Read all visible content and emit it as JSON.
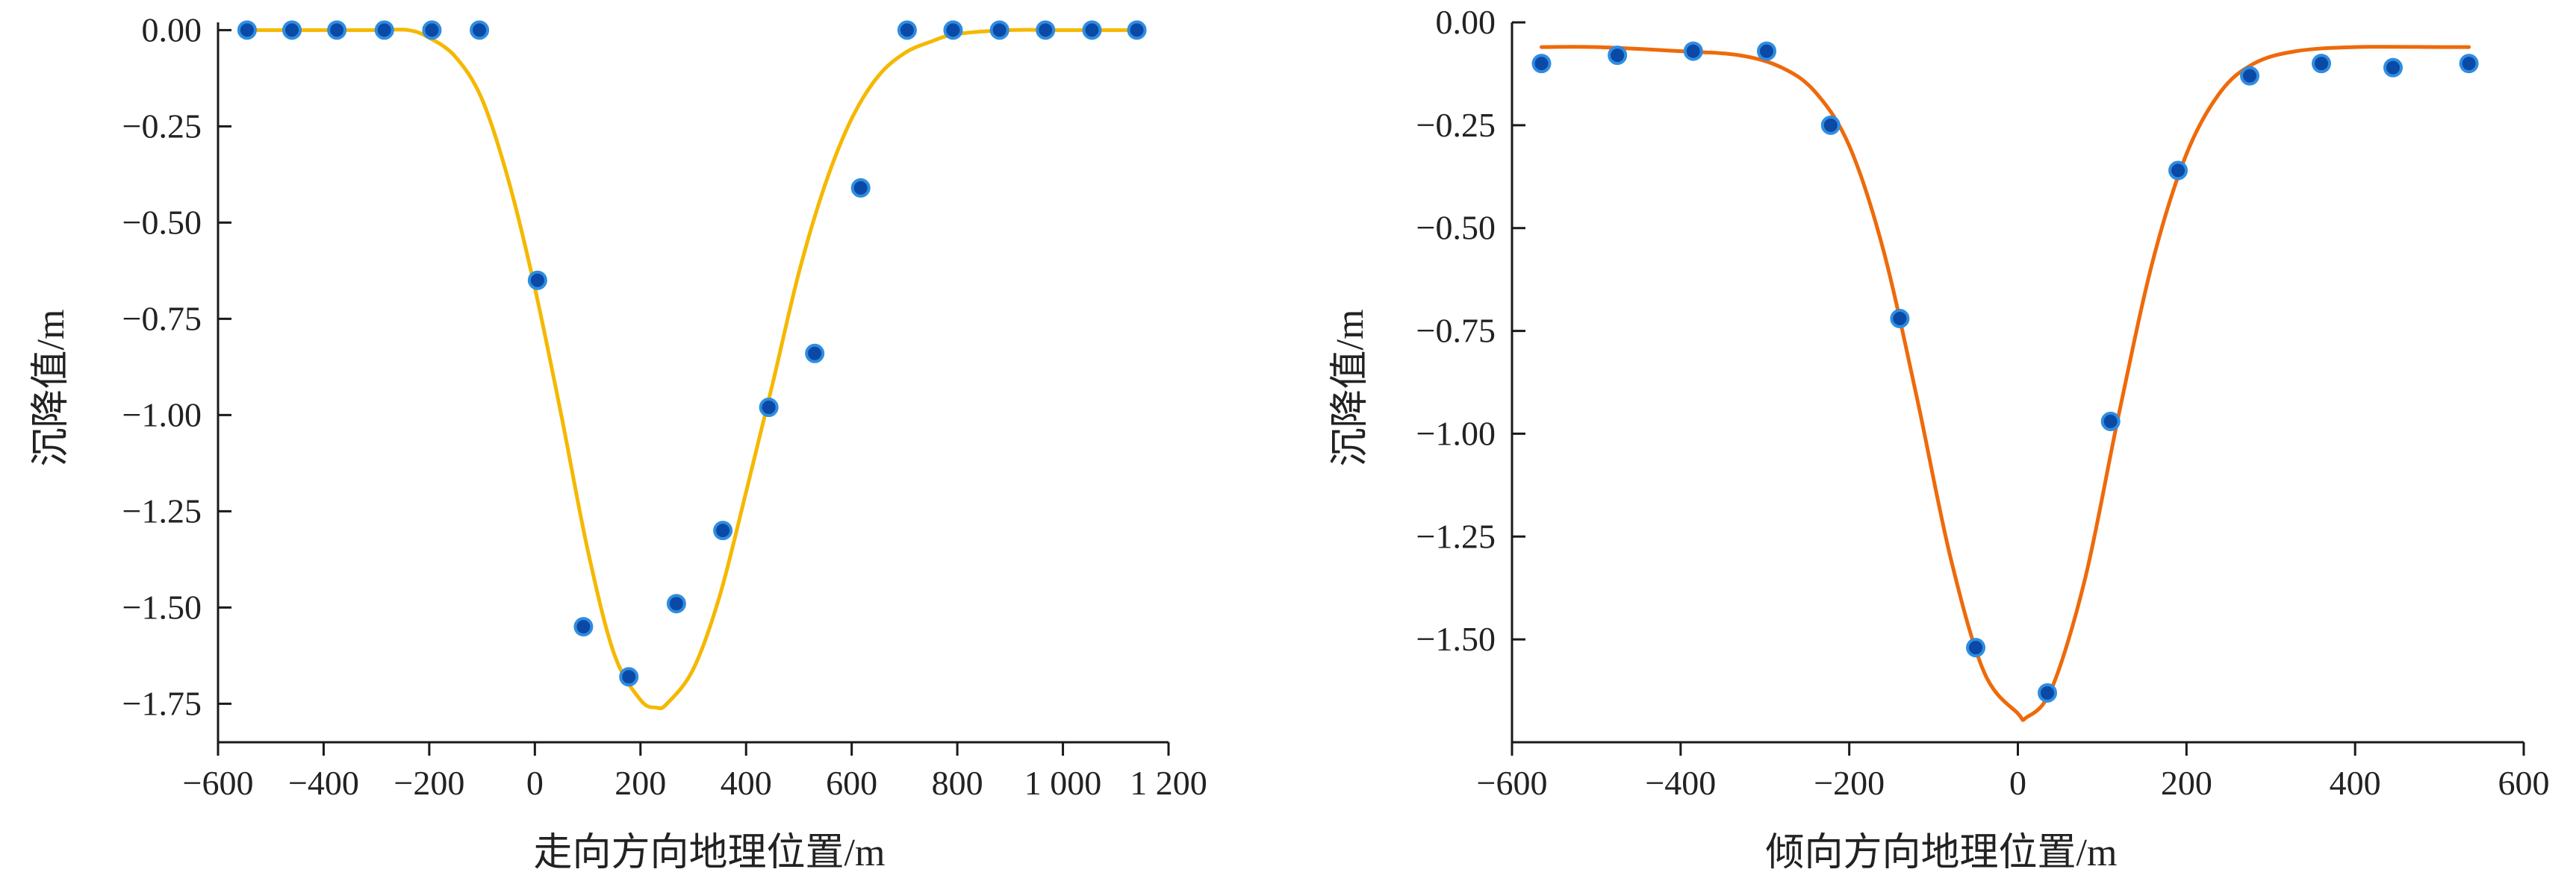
{
  "colors": {
    "axis": "#1a1a1a",
    "point_fill": "#0a49a6",
    "point_edge": "#2f8de0",
    "left_curve": "#f5b800",
    "right_curve": "#ee6a0a"
  },
  "chart_data": [
    {
      "type": "scatter",
      "title": "",
      "xlabel": "走向方向地理位置/m",
      "ylabel": "沉降值/m",
      "xlim": [
        -600,
        1200
      ],
      "ylim": [
        -1.85,
        0.02
      ],
      "x_ticks": [
        -600,
        -400,
        -200,
        0,
        200,
        400,
        600,
        800,
        1000,
        1200
      ],
      "x_tick_labels": [
        "−600",
        "−400",
        "−200",
        "0",
        "200",
        "400",
        "600",
        "800",
        "1 000",
        "1 200"
      ],
      "y_ticks": [
        0,
        -0.25,
        -0.5,
        -0.75,
        -1.0,
        -1.25,
        -1.5,
        -1.75
      ],
      "y_tick_labels": [
        "0.00",
        "−0.25",
        "−0.50",
        "−0.75",
        "−1.00",
        "−1.25",
        "−1.50",
        "−1.75"
      ],
      "grid": false,
      "series": [
        {
          "kind": "points",
          "x": [
            -545,
            -460,
            -375,
            -285,
            -195,
            -105,
            5,
            92,
            178,
            268,
            356,
            443,
            530,
            617,
            705,
            792,
            880,
            967,
            1055,
            1140
          ],
          "y": [
            0.0,
            0.0,
            0.0,
            0.0,
            0.0,
            0.0,
            -0.65,
            -1.55,
            -1.68,
            -1.49,
            -1.3,
            -0.98,
            -0.84,
            -0.41,
            0.0,
            0.0,
            0.0,
            0.0,
            0.0,
            0.0
          ]
        },
        {
          "kind": "curve",
          "x": [
            -545,
            -400,
            -300,
            -240,
            -200,
            -150,
            -100,
            -50,
            0,
            50,
            100,
            150,
            200,
            230,
            250,
            300,
            350,
            400,
            450,
            500,
            550,
            600,
            650,
            700,
            750,
            800,
            900,
            1000,
            1140
          ],
          "y": [
            0.0,
            0.0,
            0.0,
            0.0,
            -0.02,
            -0.07,
            -0.18,
            -0.39,
            -0.67,
            -1.0,
            -1.35,
            -1.62,
            -1.74,
            -1.76,
            -1.75,
            -1.66,
            -1.47,
            -1.2,
            -0.92,
            -0.63,
            -0.4,
            -0.23,
            -0.12,
            -0.06,
            -0.03,
            -0.01,
            0.0,
            0.0,
            0.0
          ]
        }
      ]
    },
    {
      "type": "scatter",
      "title": "",
      "xlabel": "倾向方向地理位置/m",
      "ylabel": "沉降值/m",
      "xlim": [
        -600,
        600
      ],
      "ylim": [
        -1.75,
        0.0
      ],
      "x_ticks": [
        -600,
        -400,
        -200,
        0,
        200,
        400,
        600
      ],
      "x_tick_labels": [
        "−600",
        "−400",
        "−200",
        "0",
        "200",
        "400",
        "600"
      ],
      "y_ticks": [
        0,
        -0.25,
        -0.5,
        -0.75,
        -1.0,
        -1.25,
        -1.5
      ],
      "y_tick_labels": [
        "0.00",
        "−0.25",
        "−0.50",
        "−0.75",
        "−1.00",
        "−1.25",
        "−1.50"
      ],
      "grid": false,
      "series": [
        {
          "kind": "points",
          "x": [
            -565,
            -475,
            -385,
            -298,
            -222,
            -140,
            -50,
            35,
            110,
            190,
            275,
            360,
            445,
            535
          ],
          "y": [
            -0.1,
            -0.08,
            -0.07,
            -0.07,
            -0.25,
            -0.72,
            -1.52,
            -1.63,
            -0.97,
            -0.36,
            -0.13,
            -0.1,
            -0.11,
            -0.1
          ]
        },
        {
          "kind": "curve",
          "x": [
            -565,
            -500,
            -400,
            -330,
            -280,
            -240,
            -200,
            -160,
            -120,
            -80,
            -40,
            0,
            10,
            40,
            80,
            120,
            160,
            200,
            240,
            280,
            330,
            400,
            500,
            535
          ],
          "y": [
            -0.06,
            -0.06,
            -0.07,
            -0.08,
            -0.11,
            -0.17,
            -0.3,
            -0.55,
            -0.91,
            -1.3,
            -1.58,
            -1.68,
            -1.69,
            -1.62,
            -1.35,
            -0.95,
            -0.58,
            -0.32,
            -0.17,
            -0.1,
            -0.07,
            -0.06,
            -0.06,
            -0.06
          ]
        }
      ]
    }
  ]
}
